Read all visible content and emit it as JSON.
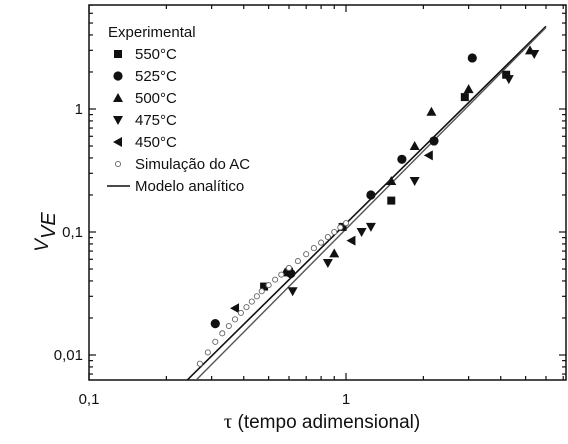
{
  "chart_data": {
    "type": "scatter",
    "title": "",
    "xlabel_symbol": "τ",
    "xlabel_text": " (tempo adimensional)",
    "ylabel_main": "V",
    "ylabel_sub": "VE",
    "x_scale": "log",
    "y_scale": "log",
    "xlim": [
      0.1,
      6
    ],
    "ylim": [
      0.006,
      6
    ],
    "x_ticks": [
      {
        "value": 0.1,
        "label": "0,1"
      },
      {
        "value": 1,
        "label": "1"
      }
    ],
    "y_ticks": [
      {
        "value": 0.01,
        "label": "0,01"
      },
      {
        "value": 0.1,
        "label": "0,1"
      },
      {
        "value": 1,
        "label": "1"
      }
    ],
    "grid": false,
    "legend_position": "top-left",
    "legend_title": "Experimental",
    "series": [
      {
        "name": "550°C",
        "marker": "square",
        "points": [
          [
            0.48,
            0.036
          ],
          [
            0.97,
            0.11
          ],
          [
            1.5,
            0.18
          ],
          [
            2.9,
            1.25
          ],
          [
            4.2,
            1.9
          ]
        ]
      },
      {
        "name": "525°C",
        "marker": "circle",
        "points": [
          [
            0.31,
            0.018
          ],
          [
            0.61,
            0.046
          ],
          [
            1.25,
            0.2
          ],
          [
            1.65,
            0.39
          ],
          [
            2.2,
            0.55
          ],
          [
            3.1,
            2.6
          ]
        ]
      },
      {
        "name": "500°C",
        "marker": "triangle-up",
        "points": [
          [
            0.58,
            0.047
          ],
          [
            0.9,
            0.067
          ],
          [
            1.5,
            0.26
          ],
          [
            1.85,
            0.5
          ],
          [
            2.15,
            0.95
          ],
          [
            3.0,
            1.45
          ],
          [
            5.2,
            3.0
          ]
        ]
      },
      {
        "name": "475°C",
        "marker": "triangle-down",
        "points": [
          [
            0.62,
            0.033
          ],
          [
            0.85,
            0.056
          ],
          [
            1.15,
            0.1
          ],
          [
            1.25,
            0.11
          ],
          [
            1.85,
            0.26
          ],
          [
            4.3,
            1.75
          ],
          [
            5.4,
            2.8
          ]
        ]
      },
      {
        "name": "450°C",
        "marker": "triangle-left",
        "points": [
          [
            0.37,
            0.024
          ],
          [
            0.6,
            0.047
          ],
          [
            1.05,
            0.085
          ],
          [
            2.1,
            0.42
          ]
        ]
      },
      {
        "name": "Simulação do AC",
        "marker": "open-circle",
        "points": [
          [
            0.27,
            0.0085
          ],
          [
            0.29,
            0.0105
          ],
          [
            0.31,
            0.0128
          ],
          [
            0.33,
            0.015
          ],
          [
            0.35,
            0.0172
          ],
          [
            0.37,
            0.0195
          ],
          [
            0.39,
            0.022
          ],
          [
            0.41,
            0.0245
          ],
          [
            0.43,
            0.0272
          ],
          [
            0.45,
            0.03
          ],
          [
            0.47,
            0.033
          ],
          [
            0.5,
            0.037
          ],
          [
            0.53,
            0.041
          ],
          [
            0.56,
            0.045
          ],
          [
            0.6,
            0.051
          ],
          [
            0.65,
            0.058
          ],
          [
            0.7,
            0.066
          ],
          [
            0.75,
            0.074
          ],
          [
            0.8,
            0.082
          ],
          [
            0.85,
            0.091
          ],
          [
            0.9,
            0.1
          ],
          [
            0.95,
            0.109
          ],
          [
            1.0,
            0.118
          ]
        ]
      }
    ],
    "model_line": {
      "name": "Modelo analítico",
      "points": [
        [
          0.24,
          0.0062
        ],
        [
          6.0,
          4.7
        ]
      ]
    },
    "sim_line": {
      "points": [
        [
          0.26,
          0.0062
        ],
        [
          6.0,
          4.6
        ]
      ]
    }
  }
}
